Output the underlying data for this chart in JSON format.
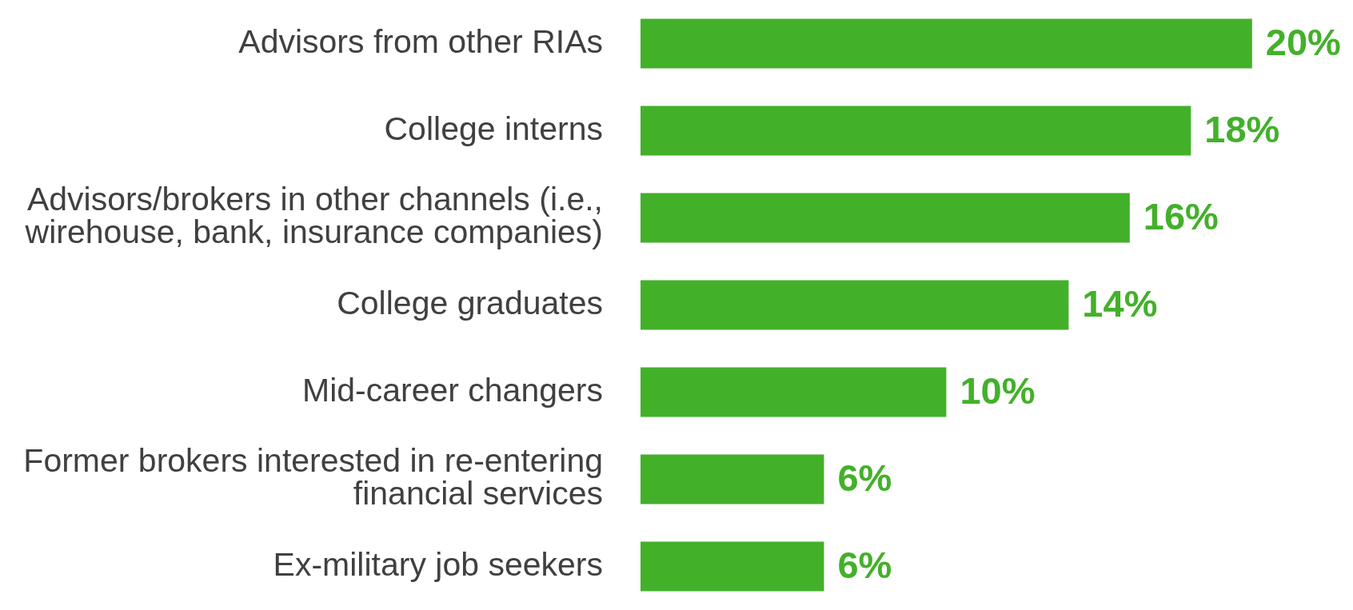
{
  "chart_data": {
    "type": "bar",
    "orientation": "horizontal",
    "legend": false,
    "grid": false,
    "tick_labels": "y",
    "color": "#43b02a",
    "categories": [
      "Advisors from other RIAs",
      "College interns",
      "Advisors/brokers in other channels (i.e., wirehouse, bank, insurance companies)",
      "College graduates",
      "Mid-career changers",
      "Former brokers interested in re-entering financial services",
      "Ex-military job seekers"
    ],
    "values": [
      20,
      18,
      16,
      14,
      10,
      6,
      6
    ],
    "value_labels": [
      "20%",
      "18%",
      "16%",
      "14%",
      "10%",
      "6%",
      "6%"
    ]
  }
}
